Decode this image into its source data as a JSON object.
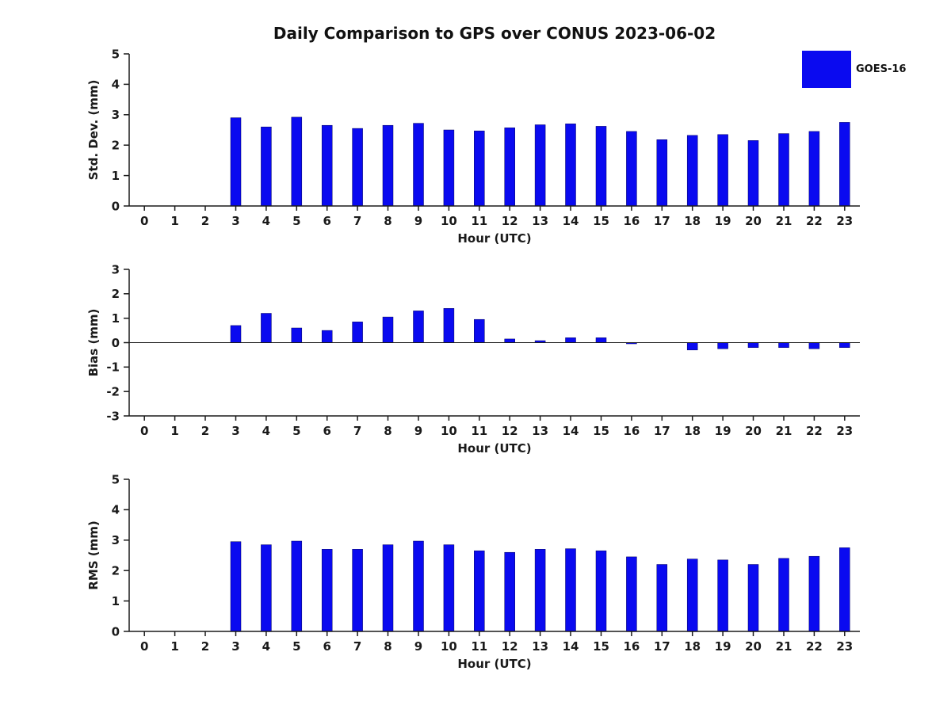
{
  "header": {
    "title": "Daily Comparison to GPS over CONUS 2023-06-02"
  },
  "legend": {
    "label": "GOES-16",
    "swatch_color": "#0a0af0"
  },
  "colors": {
    "bar": "#0a0af0",
    "bar_edge": "#000060",
    "axis": "#1a1a1a"
  },
  "chart_data": [
    {
      "type": "bar",
      "title": "Daily Comparison to GPS over CONUS 2023-06-02",
      "xlabel": "Hour (UTC)",
      "ylabel": "Std. Dev. (mm)",
      "ylim": [
        0,
        5
      ],
      "yticks": [
        0,
        1,
        2,
        3,
        4,
        5
      ],
      "categories": [
        "0",
        "1",
        "2",
        "3",
        "4",
        "5",
        "6",
        "7",
        "8",
        "9",
        "10",
        "11",
        "12",
        "13",
        "14",
        "15",
        "16",
        "17",
        "18",
        "19",
        "20",
        "21",
        "22",
        "23"
      ],
      "values": [
        null,
        null,
        null,
        2.9,
        2.6,
        2.92,
        2.65,
        2.55,
        2.65,
        2.72,
        2.5,
        2.47,
        2.57,
        2.67,
        2.7,
        2.62,
        2.45,
        2.18,
        2.32,
        2.35,
        2.15,
        2.38,
        2.45,
        2.75
      ],
      "zero_line": false,
      "legend": [
        "GOES-16"
      ],
      "legend_position": "upper-right",
      "grid": false
    },
    {
      "type": "bar",
      "title": "",
      "xlabel": "Hour (UTC)",
      "ylabel": "Bias (mm)",
      "ylim": [
        -3,
        3
      ],
      "yticks": [
        -3,
        -2,
        -1,
        0,
        1,
        2,
        3
      ],
      "categories": [
        "0",
        "1",
        "2",
        "3",
        "4",
        "5",
        "6",
        "7",
        "8",
        "9",
        "10",
        "11",
        "12",
        "13",
        "14",
        "15",
        "16",
        "17",
        "18",
        "19",
        "20",
        "21",
        "22",
        "23"
      ],
      "values": [
        null,
        null,
        null,
        0.7,
        1.2,
        0.6,
        0.5,
        0.85,
        1.05,
        1.3,
        1.4,
        0.95,
        0.15,
        0.08,
        0.2,
        0.2,
        -0.05,
        0,
        -0.3,
        -0.25,
        -0.2,
        -0.2,
        -0.25,
        -0.2
      ],
      "zero_line": true,
      "grid": false
    },
    {
      "type": "bar",
      "title": "",
      "xlabel": "Hour (UTC)",
      "ylabel": "RMS (mm)",
      "ylim": [
        0,
        5
      ],
      "yticks": [
        0,
        1,
        2,
        3,
        4,
        5
      ],
      "categories": [
        "0",
        "1",
        "2",
        "3",
        "4",
        "5",
        "6",
        "7",
        "8",
        "9",
        "10",
        "11",
        "12",
        "13",
        "14",
        "15",
        "16",
        "17",
        "18",
        "19",
        "20",
        "21",
        "22",
        "23"
      ],
      "values": [
        null,
        null,
        null,
        2.95,
        2.85,
        2.97,
        2.7,
        2.7,
        2.85,
        2.97,
        2.85,
        2.65,
        2.6,
        2.7,
        2.72,
        2.65,
        2.45,
        2.2,
        2.38,
        2.35,
        2.2,
        2.4,
        2.47,
        2.75
      ],
      "zero_line": false,
      "grid": false
    }
  ]
}
